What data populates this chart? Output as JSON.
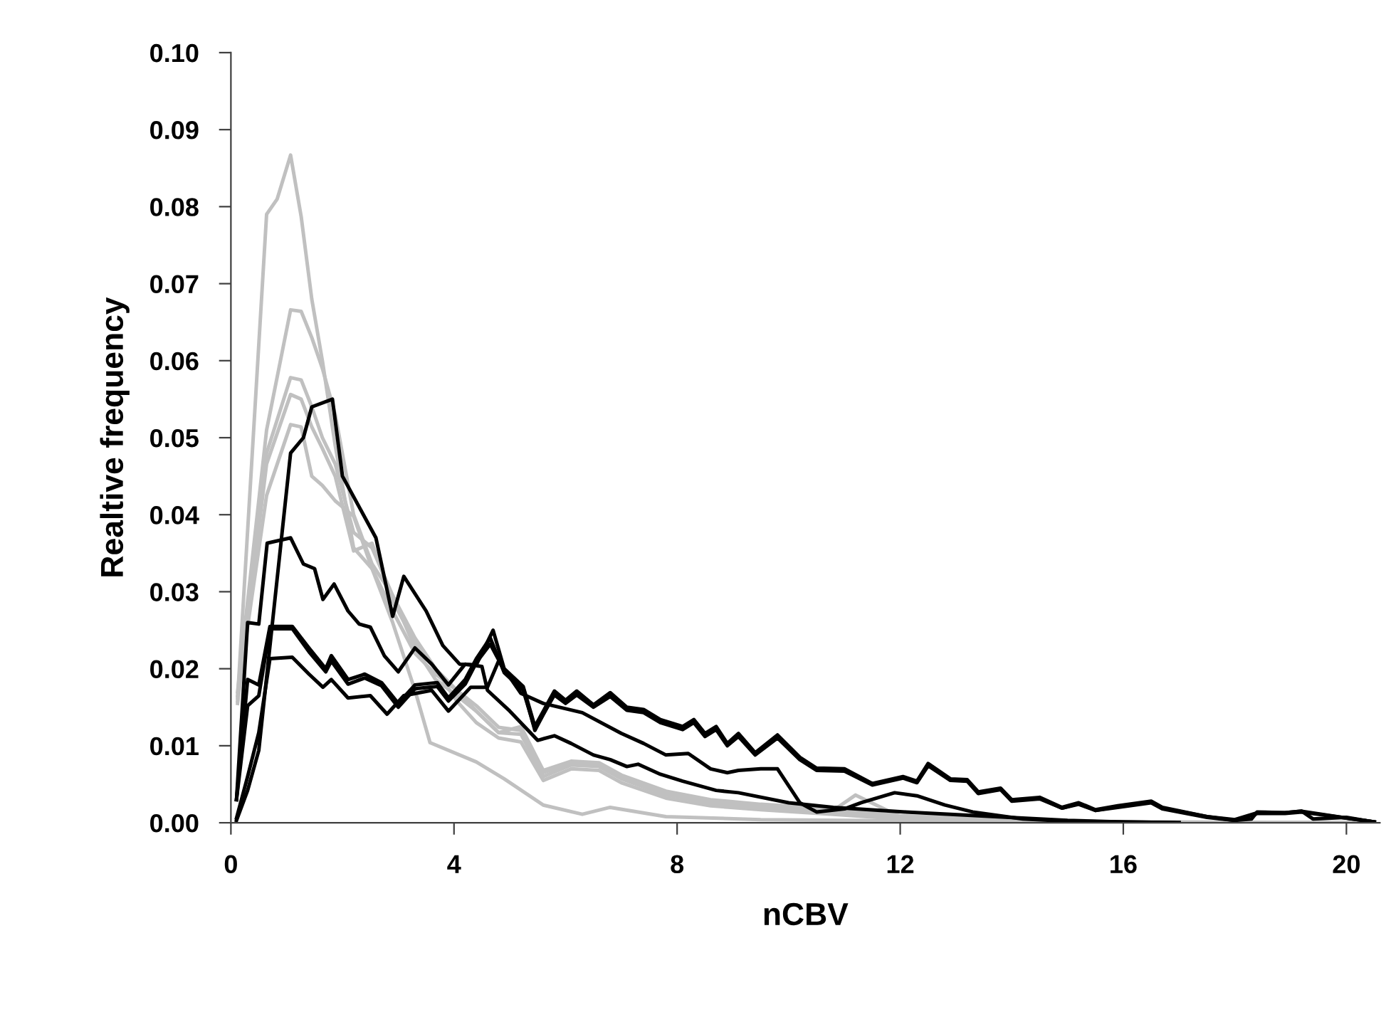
{
  "chart_data": {
    "type": "line",
    "xlabel": "nCBV",
    "ylabel": "Realtive frequency",
    "xlim": [
      0,
      20.6
    ],
    "ylim": [
      0,
      0.1
    ],
    "xticks": [
      0,
      4,
      8,
      12,
      16,
      20
    ],
    "yticks": [
      {
        "value": 0,
        "label": "0.00"
      },
      {
        "value": 0.01,
        "label": "0.01"
      },
      {
        "value": 0.02,
        "label": "0.02"
      },
      {
        "value": 0.03,
        "label": "0.03"
      },
      {
        "value": 0.04,
        "label": "0.04"
      },
      {
        "value": 0.05,
        "label": "0.05"
      },
      {
        "value": 0.06,
        "label": "0.06"
      },
      {
        "value": 0.07,
        "label": "0.07"
      },
      {
        "value": 0.08,
        "label": "0.08"
      },
      {
        "value": 0.09,
        "label": "0.09"
      },
      {
        "value": 0.1,
        "label": "0.10"
      }
    ],
    "grid": false,
    "legend": false,
    "marker": "none",
    "line_style": "solid",
    "series": [
      {
        "color": "#c0c0c0",
        "x": [
          0.12,
          0.64,
          0.83,
          1.07,
          1.26,
          1.45,
          1.64,
          1.87,
          2.2,
          2.53,
          2.9,
          3.3,
          3.57,
          4.4,
          4.9,
          5.6,
          6.3,
          6.8,
          7.8,
          9.5,
          11,
          13,
          15,
          17,
          19,
          20.5
        ],
        "values": [
          0.0162,
          0.079,
          0.081,
          0.0867,
          0.0787,
          0.068,
          0.06,
          0.049,
          0.0357,
          0.033,
          0.026,
          0.0172,
          0.0104,
          0.0079,
          0.0057,
          0.0023,
          0.0011,
          0.002,
          0.0008,
          0.0004,
          0.0003,
          0.0002,
          0.0001,
          0.0001,
          0,
          0
        ]
      },
      {
        "color": "#c0c0c0",
        "x": [
          0.12,
          0.64,
          1.07,
          1.26,
          1.45,
          1.64,
          1.87,
          2.2,
          2.53,
          2.9,
          3.3,
          3.67,
          4.05,
          4.4,
          4.8,
          5.2,
          5.6,
          6.1,
          6.6,
          7.0,
          7.8,
          8.6,
          9.5,
          10.8,
          12,
          14,
          16,
          18,
          20.5
        ],
        "values": [
          0.017,
          0.051,
          0.0666,
          0.0664,
          0.063,
          0.059,
          0.053,
          0.04,
          0.0336,
          0.0295,
          0.024,
          0.02,
          0.0158,
          0.013,
          0.011,
          0.0105,
          0.0055,
          0.007,
          0.0068,
          0.0052,
          0.0032,
          0.0022,
          0.0017,
          0.0011,
          0.0005,
          0.0002,
          0.0001,
          0,
          0
        ]
      },
      {
        "color": "#c0c0c0",
        "x": [
          0.12,
          0.64,
          1.07,
          1.26,
          1.45,
          1.64,
          1.87,
          2.2,
          2.53,
          2.9,
          3.3,
          3.67,
          4.05,
          4.4,
          4.8,
          5.2,
          5.6,
          6.1,
          6.6,
          7.0,
          7.8,
          8.6,
          9.5,
          10.8,
          12,
          14,
          16,
          18,
          20.5
        ],
        "values": [
          0.0155,
          0.048,
          0.0578,
          0.0575,
          0.054,
          0.05,
          0.0466,
          0.0377,
          0.0357,
          0.0295,
          0.0227,
          0.0186,
          0.0165,
          0.0145,
          0.0117,
          0.0115,
          0.006,
          0.0075,
          0.0073,
          0.0057,
          0.0036,
          0.0026,
          0.002,
          0.0014,
          0.0006,
          0.0002,
          0.0001,
          0,
          0
        ]
      },
      {
        "color": "#c0c0c0",
        "x": [
          0.12,
          0.64,
          1.07,
          1.26,
          1.45,
          1.64,
          1.87,
          2.2,
          2.53,
          2.9,
          3.3,
          3.67,
          4.05,
          4.4,
          4.8,
          5.2,
          5.6,
          6.1,
          6.6,
          7.0,
          7.8,
          8.6,
          9.5,
          10.8,
          11.2,
          12,
          14,
          16,
          18,
          20.5
        ],
        "values": [
          0.0158,
          0.0466,
          0.0556,
          0.055,
          0.0514,
          0.0486,
          0.045,
          0.0353,
          0.0363,
          0.0288,
          0.0234,
          0.02,
          0.0172,
          0.0152,
          0.0124,
          0.012,
          0.0065,
          0.0078,
          0.0076,
          0.006,
          0.0039,
          0.0028,
          0.0022,
          0.0016,
          0.0036,
          0.0008,
          0.0003,
          0.0001,
          0,
          0
        ]
      },
      {
        "color": "#c0c0c0",
        "x": [
          0.12,
          0.64,
          1.07,
          1.26,
          1.45,
          1.64,
          1.87,
          2.2,
          2.53,
          2.9,
          3.3,
          3.67,
          4.05,
          4.4,
          4.8,
          5.2,
          5.6,
          6.1,
          6.6,
          7.0,
          7.8,
          8.6,
          9.5,
          10.8,
          12,
          14,
          16,
          18,
          20.5
        ],
        "values": [
          0.0165,
          0.0425,
          0.0517,
          0.0514,
          0.045,
          0.0438,
          0.0418,
          0.0398,
          0.033,
          0.0275,
          0.022,
          0.0193,
          0.0172,
          0.0145,
          0.0117,
          0.0125,
          0.0068,
          0.008,
          0.0078,
          0.0062,
          0.0041,
          0.003,
          0.0024,
          0.0018,
          0.0009,
          0.0004,
          0.0001,
          0,
          0
        ]
      },
      {
        "color": "#000000",
        "x": [
          0.1,
          0.3,
          0.5,
          1.07,
          1.3,
          1.45,
          1.82,
          2.0,
          2.3,
          2.6,
          2.9,
          3.1,
          3.5,
          3.8,
          4.1,
          4.4,
          4.7,
          4.9,
          5.24,
          5.45,
          5.8,
          6.0,
          6.2,
          6.5,
          6.8,
          7.1,
          7.4,
          7.7,
          8.1,
          8.3,
          8.5,
          8.7,
          8.9,
          9.1,
          9.4,
          9.8,
          10.2,
          10.5,
          11.0,
          11.5,
          12.05,
          12.3,
          12.5,
          12.9,
          13.2,
          13.4,
          13.8,
          14.0,
          14.5,
          14.9,
          15.2,
          15.5,
          15.9,
          16.5,
          16.7,
          17.5,
          18.0,
          18.3,
          18.4,
          18.9,
          19.2,
          19.4,
          20.0,
          20.5
        ],
        "values": [
          0.0003,
          0.0042,
          0.0094,
          0.048,
          0.05,
          0.054,
          0.055,
          0.045,
          0.041,
          0.037,
          0.0268,
          0.032,
          0.0275,
          0.023,
          0.0206,
          0.0205,
          0.025,
          0.02,
          0.0177,
          0.0125,
          0.0171,
          0.0159,
          0.0171,
          0.0153,
          0.0169,
          0.015,
          0.0147,
          0.0134,
          0.0125,
          0.0134,
          0.0116,
          0.0125,
          0.0103,
          0.0116,
          0.0091,
          0.0114,
          0.0085,
          0.0071,
          0.007,
          0.0051,
          0.006,
          0.0054,
          0.0077,
          0.0057,
          0.0056,
          0.004,
          0.0045,
          0.003,
          0.0033,
          0.002,
          0.0026,
          0.0017,
          0.0022,
          0.0028,
          0.002,
          0.0008,
          0.0003,
          0.0005,
          0.0014,
          0.0013,
          0.0015,
          0.0005,
          0.0007,
          0.0001
        ]
      },
      {
        "color": "#000000",
        "x": [
          0.1,
          0.3,
          0.5,
          0.7,
          1.1,
          1.4,
          1.7,
          1.8,
          2.1,
          2.4,
          2.7,
          3.0,
          3.3,
          3.7,
          3.9,
          4.2,
          4.4,
          4.65,
          4.9,
          5.24,
          5.45,
          5.8,
          6.0,
          6.2,
          6.5,
          6.8,
          7.1,
          7.4,
          7.7,
          8.1,
          8.3,
          8.5,
          8.7,
          8.9,
          9.1,
          9.4,
          9.8,
          10.2,
          10.5,
          11.0,
          11.5,
          12.05,
          12.3,
          12.5,
          12.9,
          13.2,
          13.4,
          13.8,
          14.0,
          14.5,
          14.9,
          15.2,
          15.5,
          15.9,
          16.5,
          16.7,
          17.5,
          18.0,
          18.4,
          18.9,
          19.2,
          20.0,
          20.5
        ],
        "values": [
          0.003,
          0.0186,
          0.0179,
          0.0255,
          0.0255,
          0.0227,
          0.02,
          0.0217,
          0.0186,
          0.0193,
          0.0182,
          0.0155,
          0.0179,
          0.0182,
          0.0162,
          0.0186,
          0.0213,
          0.024,
          0.0195,
          0.0172,
          0.0122,
          0.0166,
          0.0155,
          0.0166,
          0.015,
          0.0164,
          0.0146,
          0.0143,
          0.013,
          0.0121,
          0.013,
          0.0112,
          0.0121,
          0.01,
          0.0112,
          0.0088,
          0.011,
          0.0082,
          0.0068,
          0.0067,
          0.0049,
          0.0058,
          0.0052,
          0.0074,
          0.0055,
          0.0054,
          0.0038,
          0.0043,
          0.0028,
          0.0031,
          0.0019,
          0.0024,
          0.0016,
          0.002,
          0.0026,
          0.0018,
          0.0007,
          0.0003,
          0.0012,
          0.0012,
          0.0014,
          0.0006,
          0.0001
        ]
      },
      {
        "color": "#000000",
        "x": [
          0.1,
          0.3,
          0.5,
          0.7,
          1.1,
          1.4,
          1.7,
          1.8,
          2.1,
          2.4,
          2.7,
          3.0,
          3.3,
          3.7,
          3.9,
          4.2,
          4.4,
          4.65,
          4.9,
          5.24,
          5.45,
          5.8,
          6.0,
          6.2,
          6.5,
          6.8,
          7.1,
          7.4,
          7.7,
          8.1,
          8.3,
          8.5,
          8.7,
          8.9,
          9.1,
          9.4,
          9.8,
          10.2,
          10.5,
          11.0,
          11.5,
          12.05,
          12.3,
          12.5,
          12.9,
          13.2,
          13.4,
          13.8,
          14.0,
          14.5,
          14.9,
          15.2,
          15.5,
          15.9,
          16.5,
          16.7,
          17.5,
          18.0,
          18.4,
          18.9,
          19.2,
          20.0,
          20.5
        ],
        "values": [
          0.003,
          0.0152,
          0.0165,
          0.0252,
          0.0252,
          0.0222,
          0.0196,
          0.021,
          0.018,
          0.0188,
          0.0178,
          0.015,
          0.0174,
          0.0177,
          0.0158,
          0.018,
          0.0208,
          0.0232,
          0.0198,
          0.0175,
          0.012,
          0.0168,
          0.0157,
          0.0168,
          0.0151,
          0.0166,
          0.0148,
          0.0145,
          0.0132,
          0.0123,
          0.0132,
          0.0114,
          0.0123,
          0.0101,
          0.0114,
          0.009,
          0.0112,
          0.0083,
          0.0069,
          0.0068,
          0.005,
          0.0059,
          0.0053,
          0.0075,
          0.0056,
          0.0055,
          0.0039,
          0.0044,
          0.0029,
          0.0032,
          0.0019,
          0.0025,
          0.0016,
          0.0021,
          0.0027,
          0.0019,
          0.0008,
          0.0004,
          0.0013,
          0.0013,
          0.0015,
          0.0006,
          0.0001
        ]
      },
      {
        "color": "#000000",
        "x": [
          0.1,
          0.3,
          0.5,
          0.7,
          1.1,
          1.4,
          1.65,
          1.8,
          2.1,
          2.5,
          2.8,
          3.1,
          3.6,
          3.9,
          4.3,
          4.6,
          4.8,
          5.2,
          5.6,
          6.3,
          7.0,
          7.4,
          7.8,
          8.2,
          8.6,
          8.9,
          9.1,
          9.5,
          9.8,
          10.2,
          10.5,
          11.0,
          11.3,
          11.9,
          12.3,
          12.8,
          13.3,
          14.2,
          15.0,
          16.0,
          17.0
        ],
        "values": [
          0.0006,
          0.006,
          0.0117,
          0.0213,
          0.0215,
          0.0193,
          0.0176,
          0.0186,
          0.0162,
          0.0165,
          0.0141,
          0.0165,
          0.0172,
          0.0145,
          0.0176,
          0.0176,
          0.021,
          0.0168,
          0.0155,
          0.0143,
          0.0116,
          0.0103,
          0.0088,
          0.009,
          0.007,
          0.0065,
          0.0068,
          0.007,
          0.007,
          0.0026,
          0.0014,
          0.0018,
          0.0026,
          0.0039,
          0.0035,
          0.0023,
          0.0014,
          0.0005,
          0.0002,
          0.0001,
          0
        ]
      },
      {
        "color": "#000000",
        "x": [
          0.1,
          0.3,
          0.5,
          0.65,
          1.07,
          1.3,
          1.5,
          1.65,
          1.85,
          2.1,
          2.3,
          2.5,
          2.75,
          3.0,
          3.3,
          3.6,
          3.9,
          4.2,
          4.5,
          4.6,
          5.0,
          5.5,
          5.8,
          6.1,
          6.5,
          6.8,
          7.1,
          7.3,
          7.7,
          8.1,
          8.7,
          9.1,
          10.0,
          10.8,
          12.1,
          13.7,
          15.0,
          16.0,
          17.0
        ],
        "values": [
          0.003,
          0.026,
          0.0258,
          0.0363,
          0.037,
          0.0336,
          0.033,
          0.029,
          0.031,
          0.0275,
          0.0258,
          0.0254,
          0.0217,
          0.0196,
          0.0227,
          0.0206,
          0.0179,
          0.0206,
          0.0203,
          0.0172,
          0.0145,
          0.0107,
          0.0113,
          0.0103,
          0.0088,
          0.0082,
          0.0073,
          0.0076,
          0.0063,
          0.0054,
          0.0042,
          0.0039,
          0.0026,
          0.002,
          0.0014,
          0.0008,
          0.0003,
          0.0001,
          0
        ]
      }
    ]
  }
}
